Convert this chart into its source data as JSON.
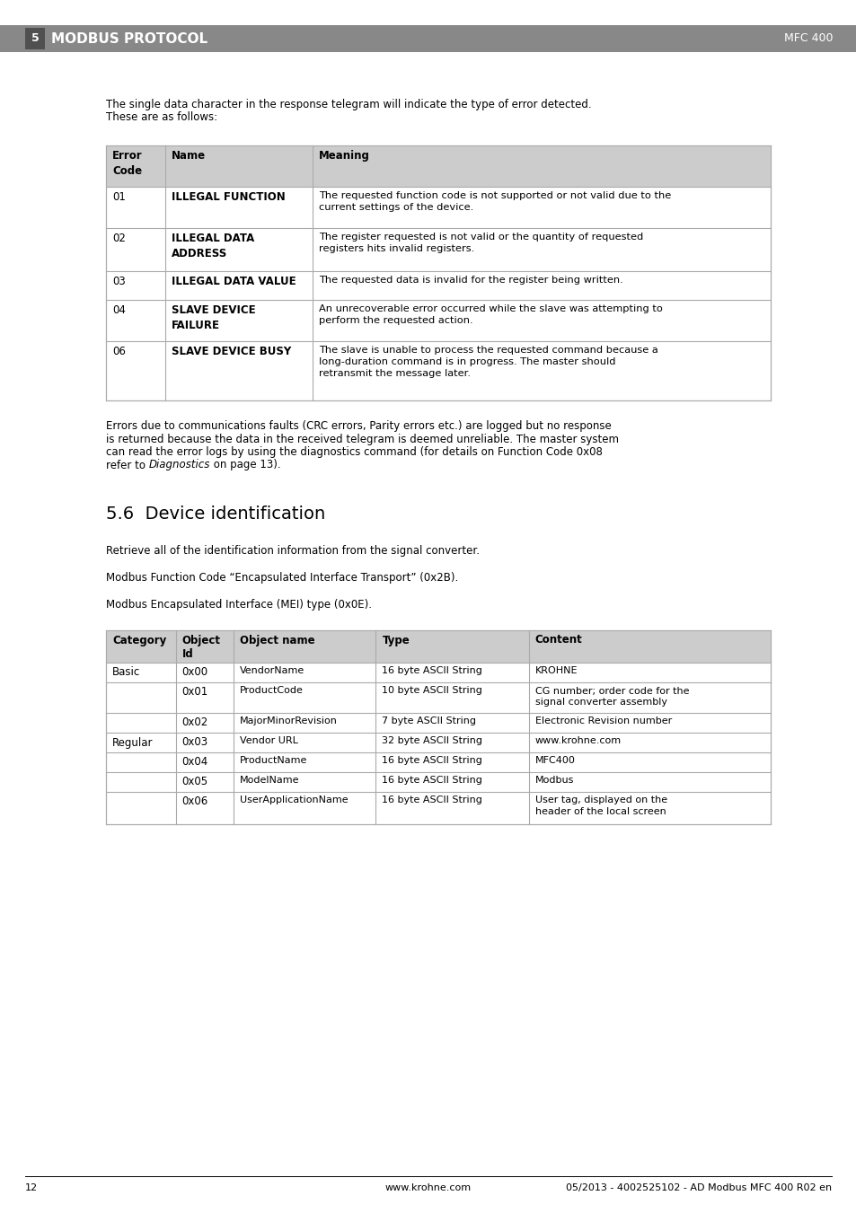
{
  "page_bg": "#ffffff",
  "header_bar_color": "#888888",
  "number_box_color": "#505050",
  "number_box_text": "5",
  "header_title": "MODBUS PROTOCOL",
  "header_right": "MFC 400",
  "table1_header_bg": "#cccccc",
  "table1_border_color": "#aaaaaa",
  "table1_cols": [
    "Error\nCode",
    "Name",
    "Meaning"
  ],
  "table1_rows": [
    [
      "01",
      "ILLEGAL FUNCTION",
      "The requested function code is not supported or not valid due to the\ncurrent settings of the device."
    ],
    [
      "02",
      "ILLEGAL DATA\nADDRESS",
      "The register requested is not valid or the quantity of requested\nregisters hits invalid registers."
    ],
    [
      "03",
      "ILLEGAL DATA VALUE",
      "The requested data is invalid for the register being written."
    ],
    [
      "04",
      "SLAVE DEVICE\nFAILURE",
      "An unrecoverable error occurred while the slave was attempting to\nperform the requested action."
    ],
    [
      "06",
      "SLAVE DEVICE BUSY",
      "The slave is unable to process the requested command because a\nlong-duration command is in progress. The master should\nretransmit the message later."
    ]
  ],
  "para1_line1": "The single data character in the response telegram will indicate the type of error detected.",
  "para1_line2": "These are as follows:",
  "para2_lines": [
    "Errors due to communications faults (CRC errors, Parity errors etc.) are logged but no response",
    "is returned because the data in the received telegram is deemed unreliable. The master system",
    "can read the error logs by using the diagnostics command (for details on Function Code 0x08"
  ],
  "para2_last_prefix": "refer to ",
  "para2_italic": "Diagnostics",
  "para2_last_suffix": " on page 13).",
  "section_title": "5.6  Device identification",
  "para3": "Retrieve all of the identification information from the signal converter.",
  "para4": "Modbus Function Code “Encapsulated Interface Transport” (0x2B).",
  "para5": "Modbus Encapsulated Interface (MEI) type (0x0E).",
  "table2_header_bg": "#cccccc",
  "table2_border_color": "#aaaaaa",
  "table2_cols": [
    "Category",
    "Object\nId",
    "Object name",
    "Type",
    "Content"
  ],
  "table2_rows": [
    [
      "Basic",
      "0x00",
      "VendorName",
      "16 byte ASCII String",
      "KROHNE"
    ],
    [
      "",
      "0x01",
      "ProductCode",
      "10 byte ASCII String",
      "CG number; order code for the\nsignal converter assembly"
    ],
    [
      "",
      "0x02",
      "MajorMinorRevision",
      "7 byte ASCII String",
      "Electronic Revision number"
    ],
    [
      "Regular",
      "0x03",
      "Vendor URL",
      "32 byte ASCII String",
      "www.krohne.com"
    ],
    [
      "",
      "0x04",
      "ProductName",
      "16 byte ASCII String",
      "MFC400"
    ],
    [
      "",
      "0x05",
      "ModelName",
      "16 byte ASCII String",
      "Modbus"
    ],
    [
      "",
      "0x06",
      "UserApplicationName",
      "16 byte ASCII String",
      "User tag, displayed on the\nheader of the local screen"
    ]
  ],
  "footer_page": "12",
  "footer_center": "www.krohne.com",
  "footer_right": "05/2013 - 4002525102 - AD Modbus MFC 400 R02 en"
}
